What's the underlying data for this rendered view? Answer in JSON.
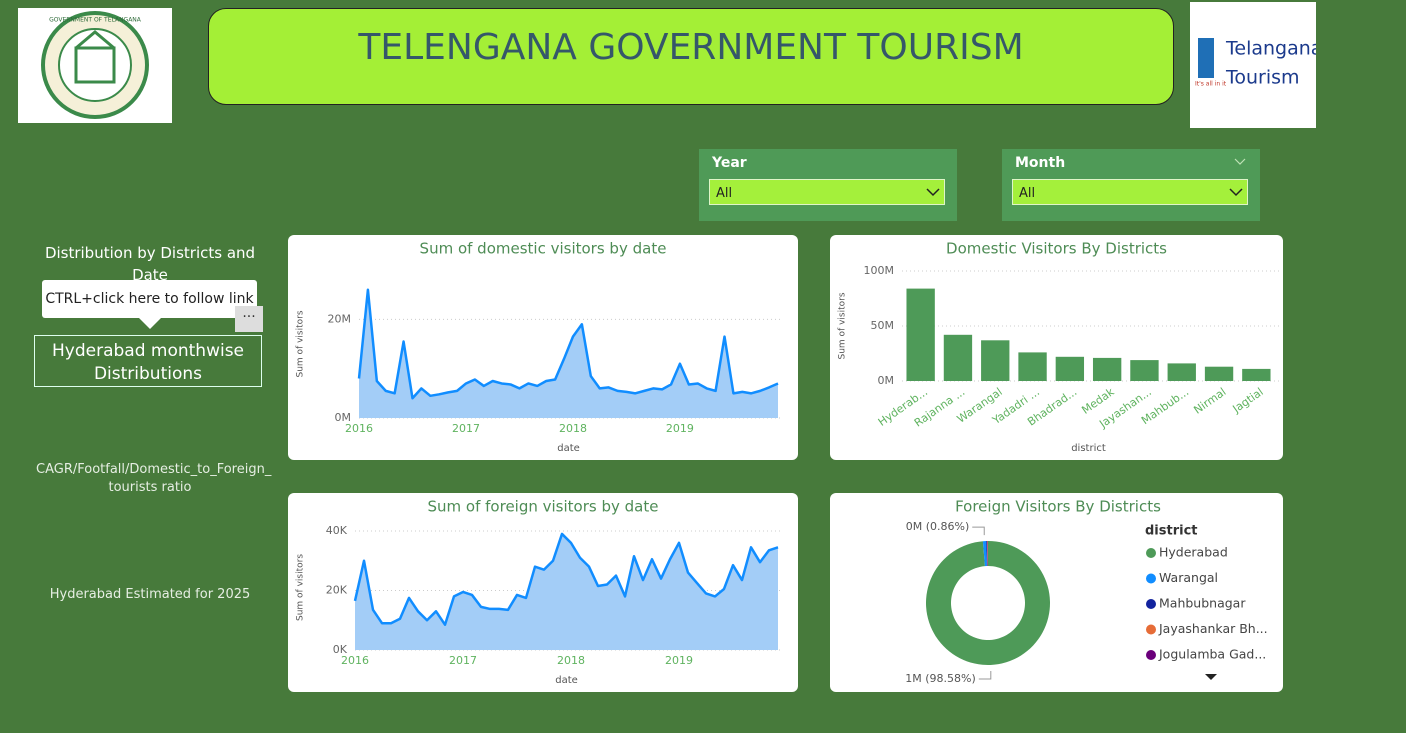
{
  "header": {
    "title": "TELENGANA GOVERNMENT TOURISM",
    "emblem_text": "GOVERNMENT OF TELANGANA",
    "logo": {
      "line1": "Telangana",
      "line2": "Tourism",
      "tagline": "It's all in it"
    }
  },
  "slicers": [
    {
      "label": "Year",
      "value": "All"
    },
    {
      "label": "Month",
      "value": "All"
    }
  ],
  "sidebar": {
    "heading": "Distribution by Districts and Date",
    "tooltip": "CTRL+click here to follow link",
    "button": "Hyderabad monthwise Distributions",
    "link1": "CAGR/Footfall/Domestic_to_Foreign_ tourists ratio",
    "link2": "Hyderabad Estimated for 2025"
  },
  "chart_data": [
    {
      "type": "area",
      "title": "Sum of domestic visitors by date",
      "xlabel": "date",
      "ylabel": "Sum of visitors",
      "color": "#118dff",
      "fill": "#a3cdf7",
      "categories": [
        "2016",
        null,
        null,
        null,
        null,
        null,
        null,
        null,
        null,
        null,
        null,
        null,
        "2017",
        null,
        null,
        null,
        null,
        null,
        null,
        null,
        null,
        null,
        null,
        null,
        "2018",
        null,
        null,
        null,
        null,
        null,
        null,
        null,
        null,
        null,
        null,
        null,
        "2019",
        null,
        null,
        null,
        null,
        null,
        null,
        null,
        null,
        null,
        null,
        null
      ],
      "values": [
        8,
        26,
        7.5,
        5.5,
        5,
        15.5,
        4,
        6,
        4.5,
        4.8,
        5.2,
        5.5,
        7,
        7.8,
        6.5,
        7.5,
        7,
        6.8,
        6,
        7,
        6.5,
        7.5,
        7.8,
        12,
        16.5,
        19,
        8.5,
        6,
        6.2,
        5.5,
        5.3,
        5,
        5.5,
        6,
        5.8,
        6.8,
        11,
        6.8,
        7,
        6,
        5.5,
        16.5,
        5,
        5.3,
        5,
        5.5,
        6.2,
        7
      ],
      "ylim": [
        0,
        30
      ],
      "yticks": [
        {
          "value": 0,
          "label": "0M"
        },
        {
          "value": 20,
          "label": "20M"
        }
      ],
      "grid": true
    },
    {
      "type": "bar",
      "title": "Domestic Visitors By Districts",
      "xlabel": "district",
      "ylabel": "Sum of visitors",
      "color": "#4e9a58",
      "categories": [
        "Hyderab...",
        "Rajanna ...",
        "Warangal",
        "Yadadri ...",
        "Bhadrad...",
        "Medak",
        "Jayashan...",
        "Mahbub...",
        "Nirmal",
        "Jagtial"
      ],
      "values": [
        84,
        42,
        37,
        26,
        22,
        21,
        19,
        16,
        13,
        11
      ],
      "ylim": [
        0,
        100
      ],
      "yticks": [
        {
          "value": 0,
          "label": "0M"
        },
        {
          "value": 50,
          "label": "50M"
        },
        {
          "value": 100,
          "label": "100M"
        }
      ],
      "grid": true
    },
    {
      "type": "area",
      "title": "Sum of foreign visitors by date",
      "xlabel": "date",
      "ylabel": "Sum of visitors",
      "color": "#118dff",
      "fill": "#a3cdf7",
      "categories": [
        "2016",
        null,
        null,
        null,
        null,
        null,
        null,
        null,
        null,
        null,
        null,
        null,
        "2017",
        null,
        null,
        null,
        null,
        null,
        null,
        null,
        null,
        null,
        null,
        null,
        "2018",
        null,
        null,
        null,
        null,
        null,
        null,
        null,
        null,
        null,
        null,
        null,
        "2019",
        null,
        null,
        null,
        null,
        null,
        null,
        null,
        null,
        null,
        null,
        null
      ],
      "values": [
        16.5,
        30,
        13.5,
        9,
        9,
        10.5,
        17.5,
        13,
        10,
        13,
        8.5,
        18,
        19.5,
        18.5,
        14.5,
        13.8,
        13.8,
        13.5,
        18.5,
        17.5,
        28,
        27,
        30,
        39,
        36,
        31,
        28,
        21.5,
        22,
        25,
        18,
        31.5,
        23.5,
        30.5,
        24,
        30.5,
        36,
        26,
        22.5,
        19,
        18,
        20.5,
        28.5,
        23.5,
        34.5,
        29.5,
        33.5,
        34.5
      ],
      "ylim": [
        0,
        42
      ],
      "yticks": [
        {
          "value": 0,
          "label": "0K"
        },
        {
          "value": 20,
          "label": "20K"
        },
        {
          "value": 40,
          "label": "40K"
        }
      ],
      "grid": true
    },
    {
      "type": "pie",
      "title": "Foreign Visitors By Districts",
      "legend_title": "district",
      "donut": true,
      "categories": [
        "Hyderabad",
        "Warangal",
        "Mahbubnagar",
        "Jayashankar Bh...",
        "Jogulamba Gad..."
      ],
      "values": [
        98.58,
        0.86,
        0.2,
        0.15,
        0.1
      ],
      "value_labels": [
        "1M (98.58%)",
        "0M (0.86%)",
        null,
        null,
        null
      ],
      "colors": [
        "#4e9a58",
        "#118dff",
        "#12239e",
        "#e66c37",
        "#6b007b"
      ]
    }
  ]
}
